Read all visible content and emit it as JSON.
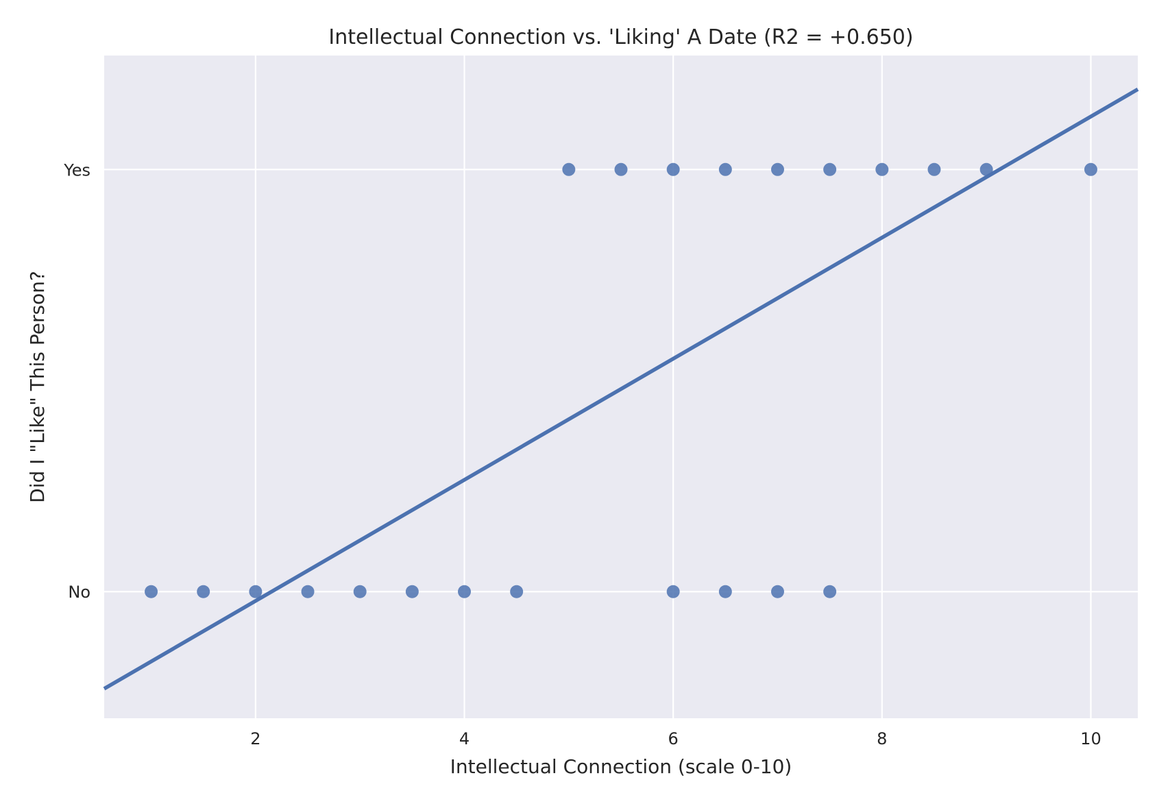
{
  "chart_data": {
    "type": "scatter",
    "title": "Intellectual Connection vs. 'Liking' A Date (R2 = +0.650)",
    "xlabel": "Intellectual Connection (scale 0-10)",
    "ylabel": "Did I \"Like\" This Person?",
    "xlim": [
      0.55,
      10.45
    ],
    "ylim": [
      -0.3,
      1.27
    ],
    "grid": true,
    "x_ticks": [
      2,
      4,
      6,
      8,
      10
    ],
    "y_ticks": [
      {
        "value": 0,
        "label": "No"
      },
      {
        "value": 1,
        "label": "Yes"
      }
    ],
    "points": [
      {
        "x": 5.0,
        "y": 1
      },
      {
        "x": 5.5,
        "y": 1
      },
      {
        "x": 6.0,
        "y": 1
      },
      {
        "x": 6.5,
        "y": 1
      },
      {
        "x": 7.0,
        "y": 1
      },
      {
        "x": 7.5,
        "y": 1
      },
      {
        "x": 8.0,
        "y": 1
      },
      {
        "x": 8.5,
        "y": 1
      },
      {
        "x": 9.0,
        "y": 1
      },
      {
        "x": 10.0,
        "y": 1
      },
      {
        "x": 1.0,
        "y": 0
      },
      {
        "x": 1.5,
        "y": 0
      },
      {
        "x": 2.0,
        "y": 0
      },
      {
        "x": 2.5,
        "y": 0
      },
      {
        "x": 3.0,
        "y": 0
      },
      {
        "x": 3.5,
        "y": 0
      },
      {
        "x": 4.0,
        "y": 0
      },
      {
        "x": 4.5,
        "y": 0
      },
      {
        "x": 6.0,
        "y": 0
      },
      {
        "x": 6.5,
        "y": 0
      },
      {
        "x": 7.0,
        "y": 0
      },
      {
        "x": 7.5,
        "y": 0
      }
    ],
    "regression_line": {
      "x": [
        0.55,
        10.45
      ],
      "y": [
        -0.23,
        1.19
      ]
    },
    "colors": {
      "background": "#eaeaf2",
      "grid": "#ffffff",
      "marker": "#4c72b0",
      "line": "#4c72b0"
    }
  }
}
